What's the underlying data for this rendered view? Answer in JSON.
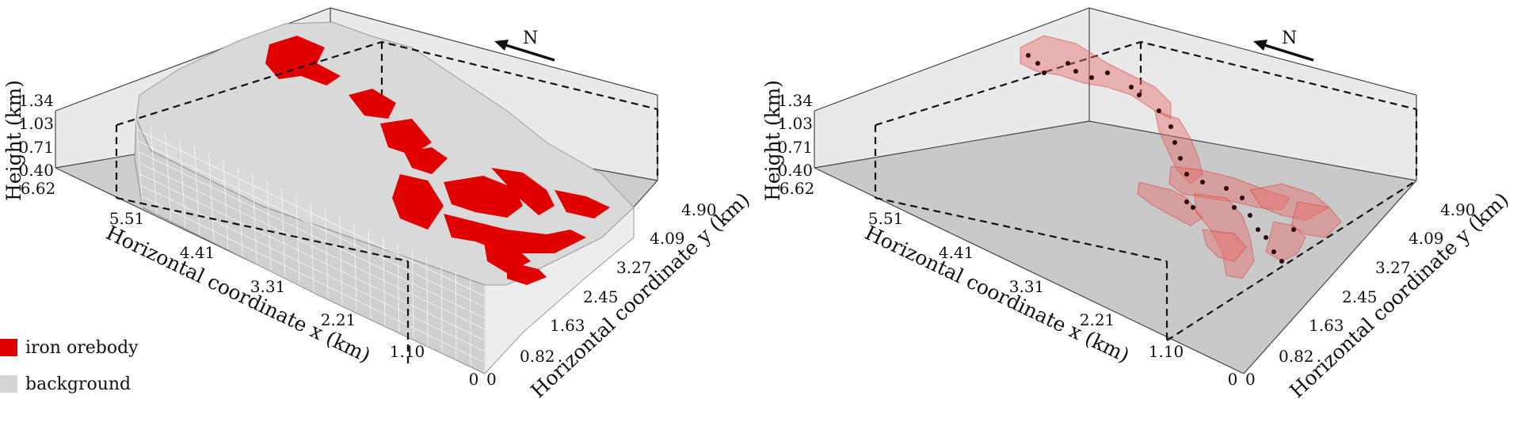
{
  "colors": {
    "orebody": "#e10000",
    "orebody_light": "#f29494",
    "background": "#d6d6d6",
    "floor": "#c9c9c9",
    "wall": "#e9e9e9",
    "point": "#2a0606"
  },
  "compass_label": "N",
  "axes": {
    "x_label": "Horizontal coordinate x (km)",
    "y_label": "Horizontal coordinate y (km)",
    "z_label": "Height (km)",
    "x_ticks": [
      "6.62",
      "5.51",
      "4.41",
      "3.31",
      "2.21",
      "1.10",
      "0"
    ],
    "y_ticks": [
      "0",
      "0.82",
      "1.63",
      "2.45",
      "3.27",
      "4.09",
      "4.90"
    ],
    "z_ticks": [
      "1.34",
      "1.03",
      "0.71",
      "0.40"
    ]
  },
  "legend": [
    {
      "label": "iron orebody",
      "color": "#e10000",
      "icon": "red-square-icon"
    },
    {
      "label": "background",
      "color": "#d6d6d6",
      "icon": "gray-square-icon"
    }
  ],
  "panels": [
    {
      "id": "left",
      "style": "voxel-surface"
    },
    {
      "id": "right",
      "style": "orebody-only"
    }
  ]
}
